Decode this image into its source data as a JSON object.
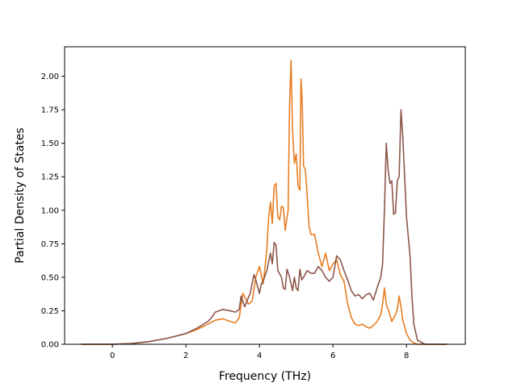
{
  "chart_data": {
    "type": "line",
    "title": "",
    "xlabel": "Frequency (THz)",
    "ylabel": "Partial Density of States",
    "xlim": [
      -1.3,
      9.6
    ],
    "ylim": [
      0,
      2.22
    ],
    "xticks": [
      0,
      2,
      4,
      6,
      8
    ],
    "yticks": [
      0.0,
      0.25,
      0.5,
      0.75,
      1.0,
      1.25,
      1.5,
      1.75,
      2.0
    ],
    "xtick_labels": [
      "0",
      "2",
      "4",
      "6",
      "8"
    ],
    "ytick_labels": [
      "0.00",
      "0.25",
      "0.50",
      "0.75",
      "1.00",
      "1.25",
      "1.50",
      "1.75",
      "2.00"
    ],
    "grid": false,
    "legend": "none",
    "series": [
      {
        "color": "#e67e22",
        "x": [
          -0.85,
          0.0,
          0.5,
          1.0,
          1.5,
          2.0,
          2.3,
          2.6,
          2.8,
          3.0,
          3.2,
          3.35,
          3.45,
          3.55,
          3.7,
          3.8,
          3.9,
          4.0,
          4.1,
          4.2,
          4.25,
          4.3,
          4.35,
          4.4,
          4.45,
          4.5,
          4.55,
          4.6,
          4.65,
          4.7,
          4.78,
          4.82,
          4.86,
          4.9,
          4.95,
          5.0,
          5.05,
          5.1,
          5.13,
          5.16,
          5.2,
          5.25,
          5.3,
          5.35,
          5.4,
          5.5,
          5.6,
          5.7,
          5.8,
          5.9,
          6.0,
          6.1,
          6.2,
          6.3,
          6.4,
          6.5,
          6.6,
          6.7,
          6.8,
          6.9,
          7.0,
          7.1,
          7.2,
          7.3,
          7.35,
          7.4,
          7.45,
          7.5,
          7.55,
          7.6,
          7.7,
          7.75,
          7.8,
          7.85,
          7.9,
          8.0,
          8.1,
          8.2,
          8.3,
          8.5,
          9.1
        ],
        "y": [
          0.0,
          0.0,
          0.005,
          0.02,
          0.045,
          0.08,
          0.11,
          0.15,
          0.18,
          0.19,
          0.17,
          0.16,
          0.2,
          0.38,
          0.3,
          0.32,
          0.5,
          0.58,
          0.45,
          0.7,
          0.95,
          1.06,
          0.9,
          1.18,
          1.2,
          0.95,
          0.93,
          1.03,
          1.02,
          0.85,
          1.0,
          1.8,
          2.12,
          1.6,
          1.35,
          1.42,
          1.18,
          1.15,
          1.98,
          1.85,
          1.33,
          1.3,
          1.1,
          0.88,
          0.82,
          0.82,
          0.68,
          0.58,
          0.68,
          0.55,
          0.6,
          0.63,
          0.52,
          0.47,
          0.3,
          0.2,
          0.15,
          0.14,
          0.15,
          0.13,
          0.12,
          0.14,
          0.17,
          0.22,
          0.3,
          0.42,
          0.3,
          0.26,
          0.22,
          0.17,
          0.22,
          0.26,
          0.36,
          0.28,
          0.18,
          0.08,
          0.03,
          0.01,
          0.0,
          0.0,
          0.0
        ]
      },
      {
        "color": "#8c564b",
        "x": [
          -0.85,
          0.0,
          0.5,
          1.0,
          1.5,
          2.0,
          2.3,
          2.6,
          2.7,
          2.8,
          2.9,
          3.0,
          3.2,
          3.35,
          3.45,
          3.5,
          3.6,
          3.7,
          3.75,
          3.8,
          3.85,
          3.9,
          4.0,
          4.05,
          4.1,
          4.2,
          4.3,
          4.35,
          4.4,
          4.45,
          4.5,
          4.6,
          4.65,
          4.7,
          4.75,
          4.82,
          4.86,
          4.9,
          4.95,
          5.0,
          5.05,
          5.1,
          5.15,
          5.2,
          5.3,
          5.4,
          5.5,
          5.6,
          5.7,
          5.8,
          5.9,
          6.0,
          6.1,
          6.2,
          6.3,
          6.4,
          6.5,
          6.6,
          6.7,
          6.8,
          6.9,
          7.0,
          7.1,
          7.2,
          7.3,
          7.35,
          7.4,
          7.45,
          7.5,
          7.55,
          7.6,
          7.65,
          7.7,
          7.75,
          7.8,
          7.85,
          7.9,
          8.0,
          8.1,
          8.15,
          8.2,
          8.3,
          8.5,
          9.1
        ],
        "y": [
          0.0,
          0.0,
          0.005,
          0.02,
          0.045,
          0.08,
          0.12,
          0.17,
          0.2,
          0.24,
          0.25,
          0.26,
          0.25,
          0.24,
          0.26,
          0.36,
          0.28,
          0.35,
          0.38,
          0.45,
          0.52,
          0.48,
          0.38,
          0.45,
          0.47,
          0.55,
          0.68,
          0.6,
          0.76,
          0.74,
          0.55,
          0.5,
          0.42,
          0.41,
          0.56,
          0.5,
          0.45,
          0.4,
          0.5,
          0.42,
          0.4,
          0.56,
          0.48,
          0.5,
          0.55,
          0.53,
          0.53,
          0.58,
          0.55,
          0.5,
          0.47,
          0.5,
          0.66,
          0.63,
          0.55,
          0.48,
          0.4,
          0.36,
          0.37,
          0.34,
          0.37,
          0.38,
          0.33,
          0.42,
          0.5,
          0.6,
          1.0,
          1.5,
          1.3,
          1.2,
          1.22,
          0.97,
          0.98,
          1.22,
          1.25,
          1.75,
          1.55,
          0.95,
          0.65,
          0.35,
          0.15,
          0.03,
          0.0,
          0.0
        ]
      }
    ]
  }
}
